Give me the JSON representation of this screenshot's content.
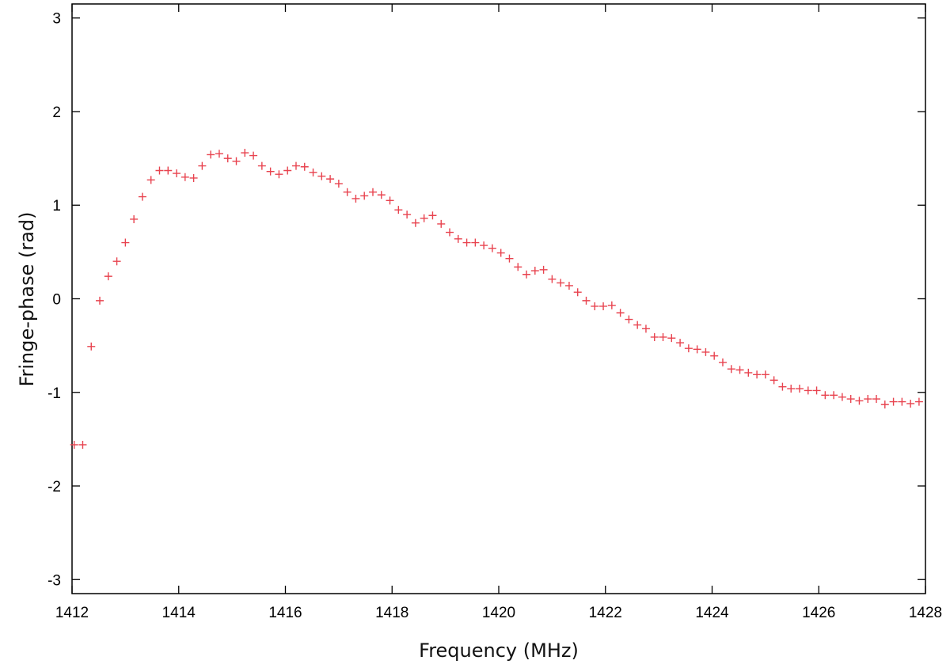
{
  "chart_data": {
    "type": "scatter",
    "title": "",
    "xlabel": "Frequency (MHz)",
    "ylabel": "Fringe-phase (rad)",
    "xlim": [
      1412,
      1428
    ],
    "ylim": [
      -3.15,
      3.15
    ],
    "xticks": [
      1412,
      1414,
      1416,
      1418,
      1420,
      1422,
      1424,
      1426,
      1428
    ],
    "yticks": [
      3,
      2,
      1,
      0,
      -1,
      -2,
      -3
    ],
    "xtick_labels": [
      "1412",
      "1414",
      "1416",
      "1418",
      "1420",
      "1422",
      "1424",
      "1426",
      "1428"
    ],
    "ytick_labels": [
      "3",
      "2",
      "1",
      "0",
      "-1",
      "-2",
      "-3"
    ],
    "grid": false,
    "marker": "plus",
    "color": "#e8434f",
    "series": [
      {
        "x": [
          1412.04,
          1412.2,
          1412.36,
          1412.52,
          1412.68,
          1412.84,
          1413.0,
          1413.16,
          1413.32,
          1413.48,
          1413.64,
          1413.8,
          1413.96,
          1414.12,
          1414.28,
          1414.44,
          1414.6,
          1414.76,
          1414.92,
          1415.08,
          1415.24,
          1415.4,
          1415.56,
          1415.72,
          1415.88,
          1416.04,
          1416.2,
          1416.36,
          1416.52,
          1416.68,
          1416.84,
          1417.0,
          1417.16,
          1417.32,
          1417.48,
          1417.64,
          1417.8,
          1417.96,
          1418.12,
          1418.28,
          1418.44,
          1418.6,
          1418.76,
          1418.92,
          1419.08,
          1419.24,
          1419.4,
          1419.56,
          1419.72,
          1419.88,
          1420.04,
          1420.2,
          1420.36,
          1420.52,
          1420.68,
          1420.84,
          1421.0,
          1421.16,
          1421.32,
          1421.48,
          1421.64,
          1421.8,
          1421.96,
          1422.12,
          1422.28,
          1422.44,
          1422.6,
          1422.76,
          1422.92,
          1423.08,
          1423.24,
          1423.4,
          1423.56,
          1423.72,
          1423.88,
          1424.04,
          1424.2,
          1424.36,
          1424.52,
          1424.68,
          1424.84,
          1425.0,
          1425.16,
          1425.32,
          1425.48,
          1425.64,
          1425.8,
          1425.96,
          1426.12,
          1426.28,
          1426.44,
          1426.6,
          1426.76,
          1426.92,
          1427.08,
          1427.24,
          1427.4,
          1427.56,
          1427.72,
          1427.88
        ],
        "y": [
          -1.56,
          -1.56,
          -0.51,
          -0.02,
          0.24,
          0.4,
          0.6,
          0.85,
          1.09,
          1.27,
          1.37,
          1.37,
          1.34,
          1.3,
          1.29,
          1.42,
          1.54,
          1.55,
          1.5,
          1.47,
          1.56,
          1.53,
          1.42,
          1.36,
          1.33,
          1.37,
          1.42,
          1.41,
          1.35,
          1.31,
          1.28,
          1.23,
          1.14,
          1.07,
          1.1,
          1.14,
          1.11,
          1.05,
          0.95,
          0.9,
          0.81,
          0.86,
          0.89,
          0.8,
          0.71,
          0.64,
          0.6,
          0.6,
          0.57,
          0.54,
          0.49,
          0.43,
          0.34,
          0.26,
          0.3,
          0.31,
          0.21,
          0.17,
          0.14,
          0.07,
          -0.02,
          -0.08,
          -0.08,
          -0.07,
          -0.15,
          -0.22,
          -0.28,
          -0.32,
          -0.41,
          -0.41,
          -0.42,
          -0.47,
          -0.53,
          -0.54,
          -0.57,
          -0.61,
          -0.68,
          -0.75,
          -0.76,
          -0.79,
          -0.81,
          -0.81,
          -0.87,
          -0.94,
          -0.96,
          -0.96,
          -0.98,
          -0.98,
          -1.03,
          -1.03,
          -1.05,
          -1.07,
          -1.09,
          -1.07,
          -1.07,
          -1.13,
          -1.1,
          -1.1,
          -1.12,
          -1.1
        ]
      }
    ]
  }
}
